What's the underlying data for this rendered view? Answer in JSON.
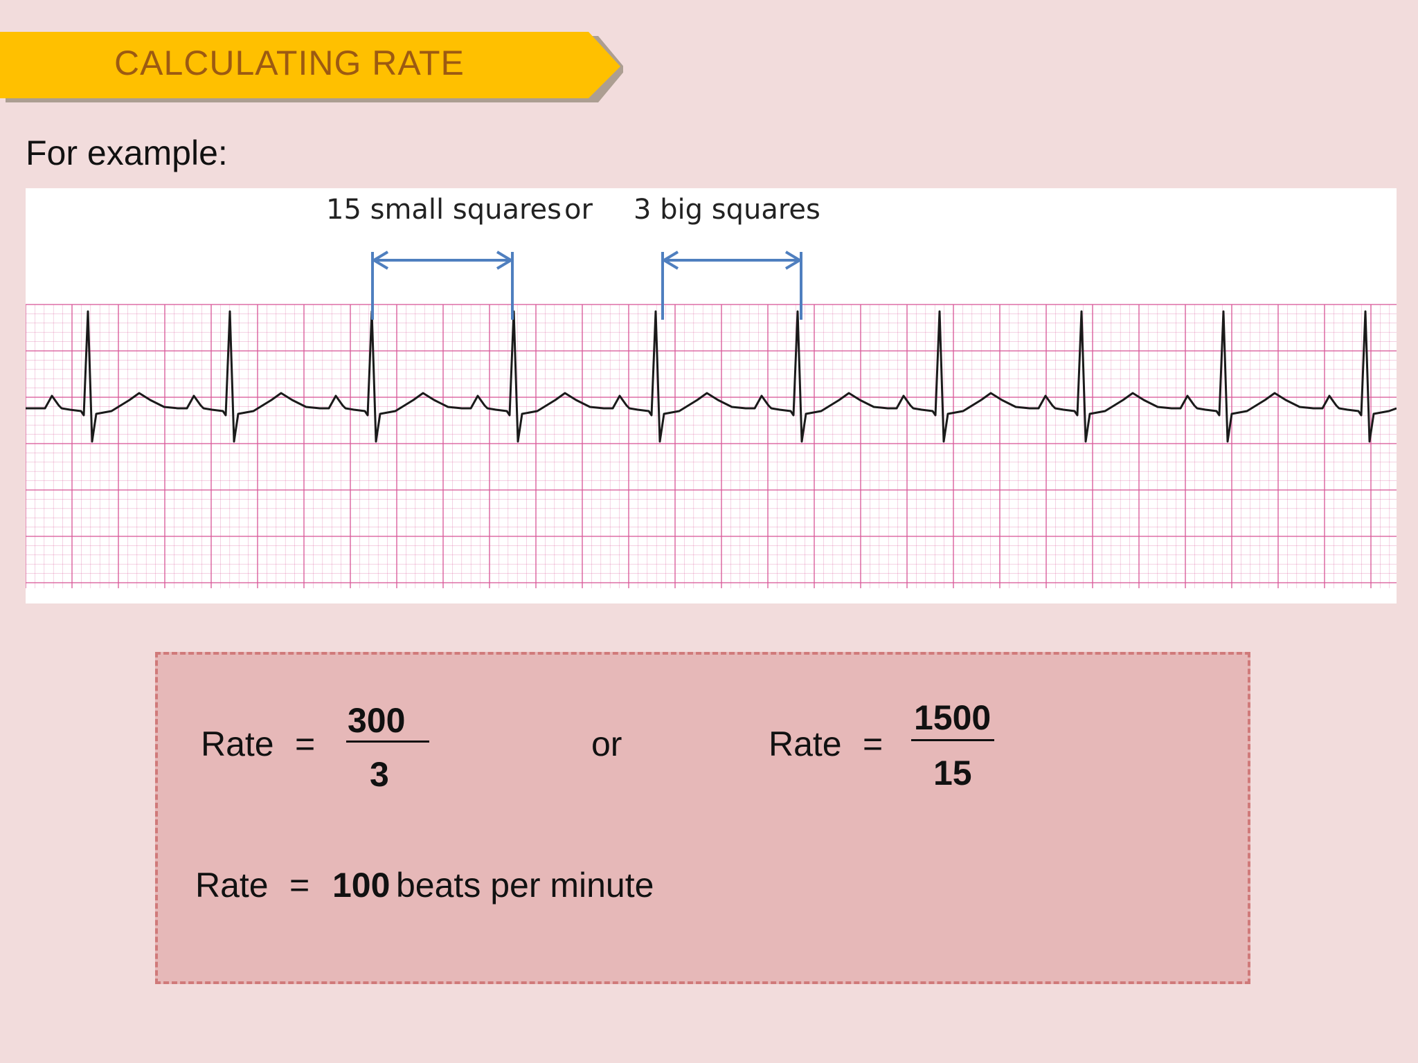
{
  "slide": {
    "title": "CALCULATING RATE",
    "intro": "For example:"
  },
  "ecg": {
    "label_small": "15 small squares",
    "label_or": "or",
    "label_big": "3 big squares"
  },
  "formula": {
    "rate_word": "Rate",
    "equals": "=",
    "left_numerator": "300",
    "left_denominator": "3",
    "or": "or",
    "right_numerator": "1500",
    "right_denominator": "15",
    "result_value": "100",
    "result_unit": "beats per minute"
  },
  "colors": {
    "background": "#f2dcdc",
    "banner": "#ffc000",
    "banner_text": "#9c5a12",
    "ecg_grid": "#d95a9a",
    "arrow": "#4f7fbf",
    "box_fill": "#e6b8b8",
    "box_border": "#d07a7a"
  }
}
